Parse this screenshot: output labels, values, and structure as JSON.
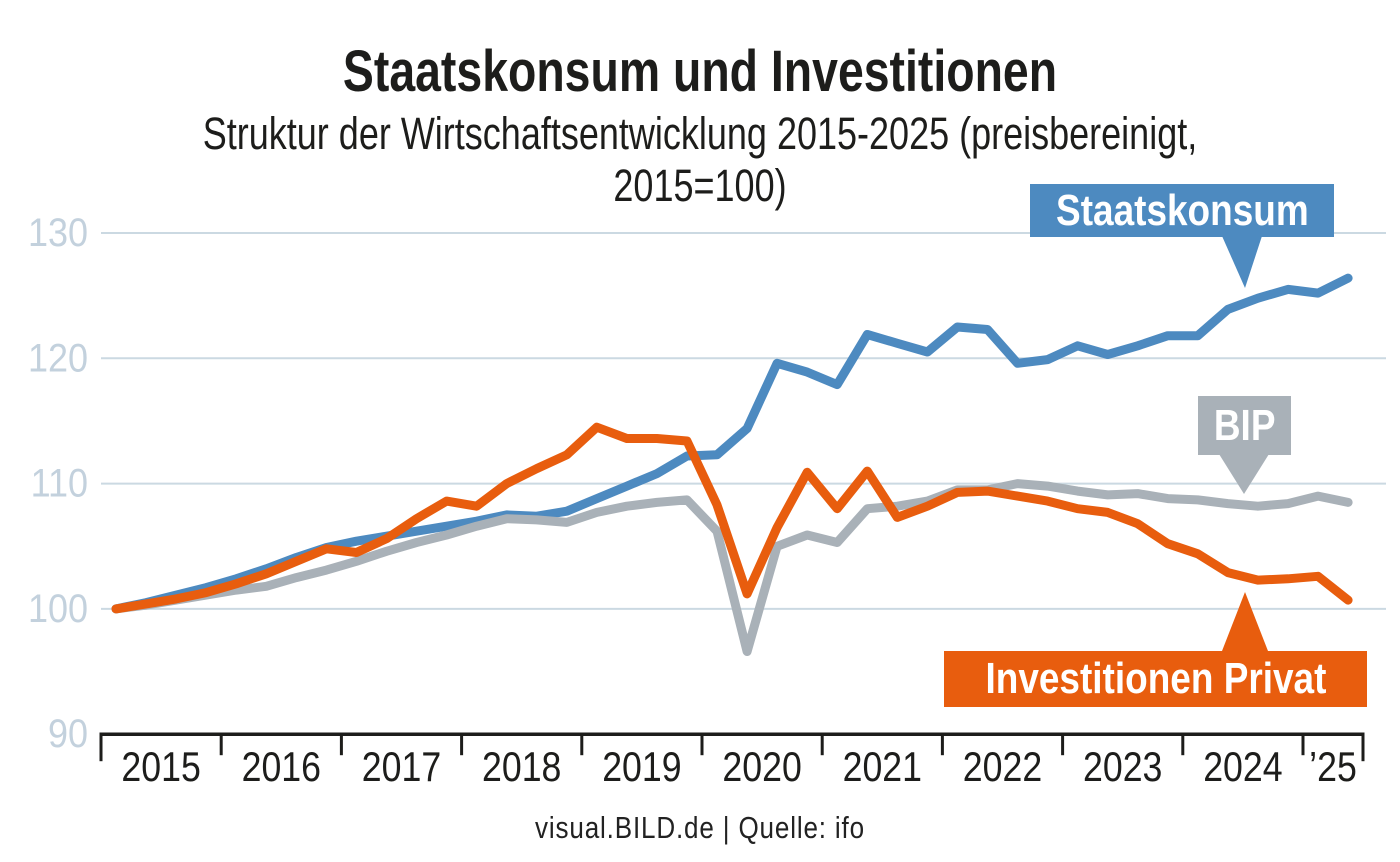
{
  "header": {
    "title": "Staatskonsum und Investitionen",
    "subtitle": "Struktur der Wirtschaftsentwicklung 2015-2025 (preisbereinigt, 2015=100)"
  },
  "annotations": {
    "staatskonsum": "Staatskonsum",
    "bip": "BIP",
    "investitionen_privat": "Investitionen Privat"
  },
  "footer": {
    "text": "visual.BILD.de | Quelle: ifo"
  },
  "colors": {
    "staatskonsum_blue": "#4D8AC0",
    "bip_gray": "#A9B1B8",
    "investitionen_orange": "#E85D0E",
    "gridline": "#CBD9E2",
    "y_label": "#C3D1DD",
    "axis_black": "#1d1d1b"
  },
  "chart_data": {
    "type": "line",
    "title": "Staatskonsum und Investitionen",
    "subtitle": "Struktur der Wirtschaftsentwicklung 2015-2025 (preisbereinigt, 2015=100)",
    "x_unit": "quarter",
    "x_range": [
      "2015-Q1",
      "2025-Q2"
    ],
    "x_tick_labels": [
      "2015",
      "2016",
      "2017",
      "2018",
      "2019",
      "2020",
      "2021",
      "2022",
      "2023",
      "2024",
      "’25"
    ],
    "y_ticks": [
      130,
      120,
      110,
      100,
      90
    ],
    "ylim": [
      90,
      131
    ],
    "grid": "horizontal",
    "legend_position": "inline-callouts",
    "series": [
      {
        "name": "Staatskonsum",
        "color": "#4D8AC0",
        "values": [
          100.0,
          100.5,
          101.1,
          101.7,
          102.4,
          103.2,
          104.1,
          104.9,
          105.4,
          105.8,
          106.2,
          106.6,
          107.0,
          107.5,
          107.4,
          107.8,
          108.8,
          109.8,
          110.8,
          112.2,
          112.3,
          114.4,
          119.6,
          118.9,
          117.9,
          121.9,
          121.2,
          120.5,
          122.5,
          122.3,
          119.6,
          119.9,
          121.0,
          120.3,
          121.0,
          121.8,
          121.8,
          123.9,
          124.8,
          125.5,
          125.2,
          126.4
        ]
      },
      {
        "name": "BIP",
        "color": "#A9B1B8",
        "values": [
          100.0,
          100.3,
          100.7,
          101.1,
          101.5,
          101.8,
          102.5,
          103.1,
          103.8,
          104.6,
          105.3,
          105.9,
          106.6,
          107.2,
          107.1,
          106.9,
          107.7,
          108.2,
          108.5,
          108.7,
          106.2,
          96.6,
          105.0,
          105.9,
          105.3,
          108.0,
          108.2,
          108.6,
          109.5,
          109.5,
          110.0,
          109.8,
          109.4,
          109.1,
          109.2,
          108.8,
          108.7,
          108.4,
          108.2,
          108.4,
          109.0,
          108.5
        ]
      },
      {
        "name": "Investitionen Privat",
        "color": "#E85D0E",
        "values": [
          100.0,
          100.4,
          100.8,
          101.3,
          102.0,
          102.8,
          103.8,
          104.8,
          104.5,
          105.6,
          107.2,
          108.6,
          108.2,
          110.0,
          111.2,
          112.3,
          114.5,
          113.6,
          113.6,
          113.4,
          108.3,
          101.2,
          106.5,
          110.9,
          108.0,
          111.0,
          107.3,
          108.2,
          109.3,
          109.4,
          109.0,
          108.6,
          108.0,
          107.7,
          106.8,
          105.2,
          104.4,
          102.9,
          102.3,
          102.4,
          102.6,
          100.7
        ]
      }
    ]
  }
}
